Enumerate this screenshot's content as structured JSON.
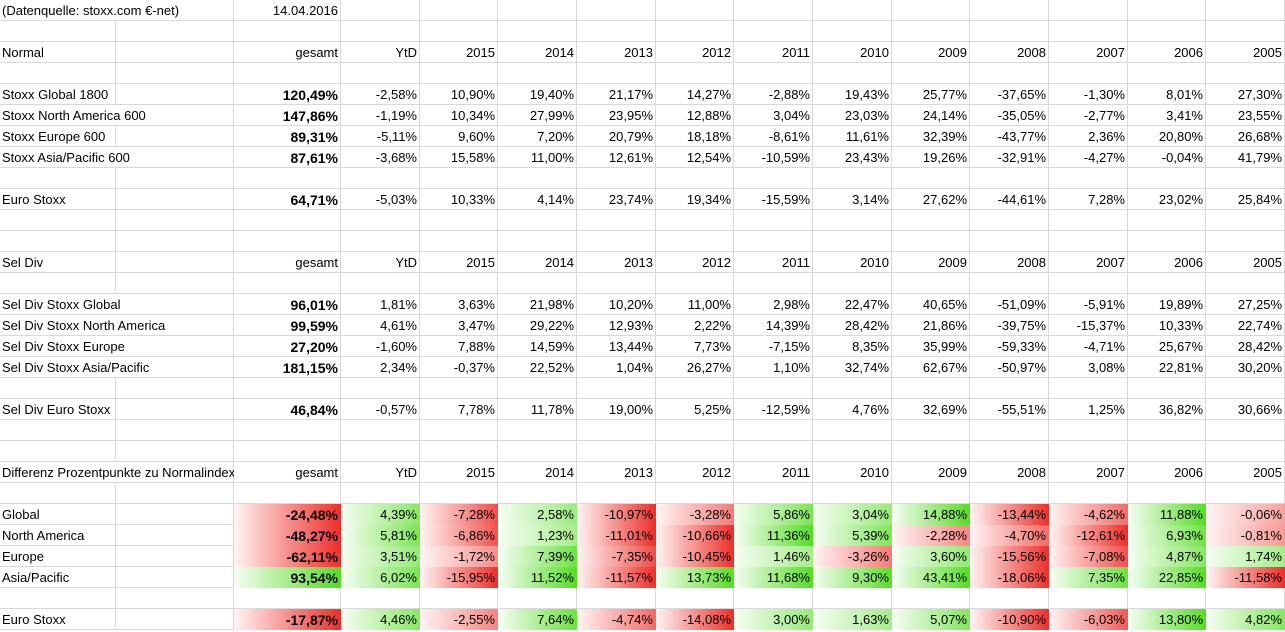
{
  "header": {
    "source_note": "(Datenquelle: stoxx.com €-net)",
    "date": "14.04.2016"
  },
  "columns": [
    "gesamt",
    "YtD",
    "2015",
    "2014",
    "2013",
    "2012",
    "2011",
    "2010",
    "2009",
    "2008",
    "2007",
    "2006",
    "2005"
  ],
  "colors": {
    "diff_positive": "#55dd22",
    "diff_negative": "#ee2e28",
    "gridline": "#d9d9d9"
  },
  "sections": [
    {
      "title": "Normal",
      "colored": false,
      "rows": [
        {
          "label": "Stoxx Global 1800",
          "values": [
            "120,49%",
            "-2,58%",
            "10,90%",
            "19,40%",
            "21,17%",
            "14,27%",
            "-2,88%",
            "19,43%",
            "25,77%",
            "-37,65%",
            "-1,30%",
            "8,01%",
            "27,30%"
          ]
        },
        {
          "label": "Stoxx North America 600",
          "values": [
            "147,86%",
            "-1,19%",
            "10,34%",
            "27,99%",
            "23,95%",
            "12,88%",
            "3,04%",
            "23,03%",
            "24,14%",
            "-35,05%",
            "-2,77%",
            "3,41%",
            "23,55%"
          ]
        },
        {
          "label": "Stoxx Europe 600",
          "values": [
            "89,31%",
            "-5,11%",
            "9,60%",
            "7,20%",
            "20,79%",
            "18,18%",
            "-8,61%",
            "11,61%",
            "32,39%",
            "-43,77%",
            "2,36%",
            "20,80%",
            "26,68%"
          ]
        },
        {
          "label": "Stoxx Asia/Pacific 600",
          "values": [
            "87,61%",
            "-3,68%",
            "15,58%",
            "11,00%",
            "12,61%",
            "12,54%",
            "-10,59%",
            "23,43%",
            "19,26%",
            "-32,91%",
            "-4,27%",
            "-0,04%",
            "41,79%"
          ]
        },
        {
          "label": "Euro Stoxx",
          "values": [
            "64,71%",
            "-5,03%",
            "10,33%",
            "4,14%",
            "23,74%",
            "19,34%",
            "-15,59%",
            "3,14%",
            "27,62%",
            "-44,61%",
            "7,28%",
            "23,02%",
            "25,84%"
          ]
        }
      ]
    },
    {
      "title": "Sel Div",
      "colored": false,
      "rows": [
        {
          "label": "Sel Div Stoxx Global",
          "values": [
            "96,01%",
            "1,81%",
            "3,63%",
            "21,98%",
            "10,20%",
            "11,00%",
            "2,98%",
            "22,47%",
            "40,65%",
            "-51,09%",
            "-5,91%",
            "19,89%",
            "27,25%"
          ]
        },
        {
          "label": "Sel Div Stoxx North America",
          "values": [
            "99,59%",
            "4,61%",
            "3,47%",
            "29,22%",
            "12,93%",
            "2,22%",
            "14,39%",
            "28,42%",
            "21,86%",
            "-39,75%",
            "-15,37%",
            "10,33%",
            "22,74%"
          ]
        },
        {
          "label": "Sel Div Stoxx Europe",
          "values": [
            "27,20%",
            "-1,60%",
            "7,88%",
            "14,59%",
            "13,44%",
            "7,73%",
            "-7,15%",
            "8,35%",
            "35,99%",
            "-59,33%",
            "-4,71%",
            "25,67%",
            "28,42%"
          ]
        },
        {
          "label": "Sel Div Stoxx Asia/Pacific",
          "values": [
            "181,15%",
            "2,34%",
            "-0,37%",
            "22,52%",
            "1,04%",
            "26,27%",
            "1,10%",
            "32,74%",
            "62,67%",
            "-50,97%",
            "3,08%",
            "22,81%",
            "30,20%"
          ]
        },
        {
          "label": "Sel Div Euro Stoxx",
          "values": [
            "46,84%",
            "-0,57%",
            "7,78%",
            "11,78%",
            "19,00%",
            "5,25%",
            "-12,59%",
            "4,76%",
            "32,69%",
            "-55,51%",
            "1,25%",
            "36,82%",
            "30,66%"
          ]
        }
      ]
    },
    {
      "title": "Differenz Prozentpunkte zu Normalindex",
      "colored": true,
      "rows": [
        {
          "label": "Global",
          "values": [
            "-24,48%",
            "4,39%",
            "-7,28%",
            "2,58%",
            "-10,97%",
            "-3,28%",
            "5,86%",
            "3,04%",
            "14,88%",
            "-13,44%",
            "-4,62%",
            "11,88%",
            "-0,06%"
          ]
        },
        {
          "label": "North America",
          "values": [
            "-48,27%",
            "5,81%",
            "-6,86%",
            "1,23%",
            "-11,01%",
            "-10,66%",
            "11,36%",
            "5,39%",
            "-2,28%",
            "-4,70%",
            "-12,61%",
            "6,93%",
            "-0,81%"
          ]
        },
        {
          "label": "Europe",
          "values": [
            "-62,11%",
            "3,51%",
            "-1,72%",
            "7,39%",
            "-7,35%",
            "-10,45%",
            "1,46%",
            "-3,26%",
            "3,60%",
            "-15,56%",
            "-7,08%",
            "4,87%",
            "1,74%"
          ]
        },
        {
          "label": "Asia/Pacific",
          "values": [
            "93,54%",
            "6,02%",
            "-15,95%",
            "11,52%",
            "-11,57%",
            "13,73%",
            "11,68%",
            "9,30%",
            "43,41%",
            "-18,06%",
            "7,35%",
            "22,85%",
            "-11,58%"
          ]
        },
        {
          "label": "Euro Stoxx",
          "values": [
            "-17,87%",
            "4,46%",
            "-2,55%",
            "7,64%",
            "-4,74%",
            "-14,08%",
            "3,00%",
            "1,63%",
            "5,07%",
            "-10,90%",
            "-6,03%",
            "13,80%",
            "4,82%"
          ]
        }
      ]
    }
  ]
}
